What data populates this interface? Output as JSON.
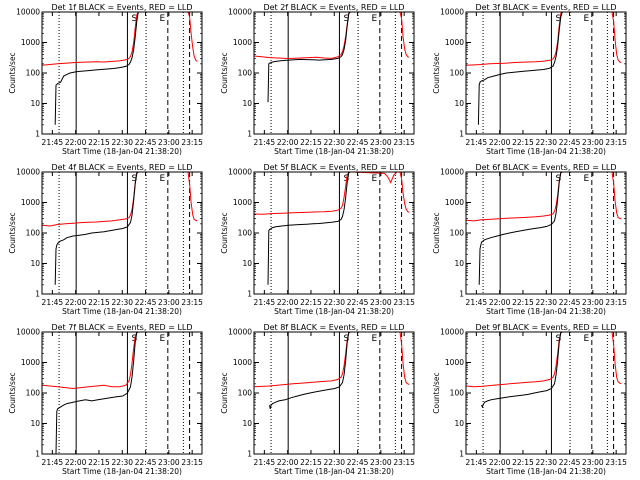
{
  "chart_data": {
    "type": "line",
    "layout": "3x3 grid",
    "xlabel": "Start Time (18-Jan-04 21:38:20)",
    "ylabel": "Counts/sec",
    "y_scale": "log",
    "ylim": [
      1,
      10000
    ],
    "y_tick_labels": [
      "1",
      "10",
      "100",
      "1000",
      "10000"
    ],
    "x_range_minutes": [
      0,
      103
    ],
    "x_tick_minutes": [
      6.67,
      21.67,
      36.67,
      51.67,
      66.67,
      81.67,
      96.67
    ],
    "x_tick_labels": [
      "21:45",
      "22:00",
      "22:15",
      "22:30",
      "22:45",
      "23:00",
      "23:15"
    ],
    "series_colors": {
      "events": "#000000",
      "lld": "#ff0000"
    },
    "grid": false,
    "panels": [
      {
        "title": "Det 1f BLACK = Events, RED = LLD",
        "markers": [
          "S",
          "E"
        ],
        "events": {
          "x": [
            8.5,
            9,
            9.5,
            10,
            12,
            14,
            16,
            18,
            22,
            26,
            30,
            34,
            38,
            42,
            46,
            50,
            54,
            56,
            57,
            58,
            59,
            60,
            61,
            62,
            63
          ],
          "y": [
            2,
            40,
            42,
            45,
            50,
            80,
            90,
            100,
            110,
            115,
            120,
            125,
            130,
            135,
            140,
            150,
            165,
            190,
            230,
            320,
            600,
            1500,
            5000,
            10000,
            10000
          ]
        },
        "lld": {
          "x": [
            0,
            5,
            10,
            15,
            20,
            25,
            30,
            35,
            40,
            45,
            50,
            54,
            56,
            57,
            58,
            59,
            60,
            61,
            62,
            63,
            94,
            95,
            96,
            97,
            98,
            99,
            100
          ],
          "y": [
            180,
            190,
            200,
            210,
            220,
            225,
            230,
            235,
            230,
            240,
            250,
            270,
            300,
            350,
            500,
            1000,
            3000,
            8000,
            10000,
            10000,
            10000,
            7000,
            2000,
            700,
            350,
            260,
            240
          ]
        }
      },
      {
        "title": "Det 2f BLACK = Events, RED = LLD",
        "markers": [
          "S",
          "E"
        ],
        "events": {
          "x": [
            9,
            9.5,
            10,
            12,
            14,
            18,
            22,
            26,
            30,
            34,
            38,
            42,
            46,
            50,
            54,
            56,
            57,
            58,
            59,
            60,
            61,
            62,
            63
          ],
          "y": [
            11,
            200,
            210,
            230,
            240,
            255,
            265,
            270,
            280,
            275,
            270,
            265,
            270,
            280,
            300,
            340,
            400,
            600,
            1200,
            3500,
            9000,
            10000,
            10000
          ]
        },
        "lld": {
          "x": [
            0,
            5,
            10,
            15,
            20,
            25,
            30,
            35,
            40,
            45,
            50,
            54,
            56,
            57,
            58,
            59,
            60,
            61,
            62,
            63,
            94,
            95,
            96,
            97,
            98,
            99,
            100
          ],
          "y": [
            360,
            340,
            320,
            310,
            300,
            300,
            310,
            320,
            330,
            310,
            300,
            340,
            400,
            500,
            800,
            1600,
            4000,
            9000,
            10000,
            10000,
            10000,
            6000,
            1500,
            600,
            400,
            340,
            330
          ]
        }
      },
      {
        "title": "Det 3f BLACK = Events, RED = LLD",
        "markers": [
          "S",
          "E"
        ],
        "events": {
          "x": [
            8,
            8.5,
            9,
            10,
            12,
            14,
            18,
            22,
            26,
            30,
            34,
            38,
            42,
            46,
            50,
            54,
            56,
            57,
            58,
            59,
            60,
            61,
            62,
            63
          ],
          "y": [
            2,
            40,
            50,
            55,
            60,
            70,
            80,
            90,
            100,
            105,
            110,
            115,
            120,
            125,
            130,
            145,
            170,
            220,
            350,
            800,
            2500,
            7000,
            10000,
            10000
          ]
        },
        "lld": {
          "x": [
            0,
            5,
            10,
            15,
            20,
            25,
            30,
            35,
            40,
            45,
            50,
            54,
            56,
            57,
            58,
            59,
            60,
            61,
            62,
            63,
            94,
            95,
            96,
            97,
            98,
            99,
            100
          ],
          "y": [
            180,
            185,
            190,
            200,
            205,
            210,
            220,
            225,
            230,
            235,
            245,
            260,
            290,
            340,
            500,
            1100,
            3500,
            9000,
            10000,
            10000,
            10000,
            5000,
            1200,
            400,
            260,
            230,
            220
          ]
        }
      },
      {
        "title": "Det 4f BLACK = Events, RED = LLD",
        "markers": [
          "S",
          "E"
        ],
        "events": {
          "x": [
            8.5,
            9,
            9.5,
            10,
            12,
            14,
            16,
            20,
            24,
            28,
            32,
            36,
            40,
            44,
            48,
            52,
            55,
            57,
            58,
            59,
            60,
            61,
            62,
            63
          ],
          "y": [
            2,
            30,
            40,
            45,
            55,
            60,
            70,
            80,
            85,
            90,
            100,
            105,
            110,
            120,
            130,
            140,
            160,
            220,
            400,
            1200,
            4000,
            9000,
            10000,
            10000
          ]
        },
        "lld": {
          "x": [
            0,
            5,
            10,
            15,
            20,
            25,
            30,
            35,
            40,
            45,
            50,
            54,
            56,
            57,
            58,
            59,
            60,
            61,
            62,
            63,
            94,
            95,
            96,
            97,
            98,
            99,
            100
          ],
          "y": [
            180,
            170,
            190,
            200,
            210,
            220,
            225,
            230,
            240,
            250,
            270,
            290,
            320,
            380,
            600,
            1400,
            4500,
            9500,
            10000,
            10000,
            10000,
            4000,
            1000,
            400,
            280,
            260,
            250
          ]
        }
      },
      {
        "title": "Det 5f BLACK = Events, RED = LLD",
        "markers": [
          "S",
          "E"
        ],
        "events": {
          "x": [
            9,
            9.5,
            10,
            12,
            14,
            18,
            22,
            26,
            30,
            34,
            38,
            42,
            46,
            50,
            54,
            56,
            57,
            58,
            59,
            60,
            61,
            62,
            63
          ],
          "y": [
            2,
            120,
            130,
            150,
            160,
            170,
            180,
            185,
            190,
            195,
            200,
            205,
            215,
            225,
            240,
            280,
            350,
            600,
            1500,
            4500,
            9500,
            10000,
            10000
          ]
        },
        "lld": {
          "x": [
            0,
            5,
            10,
            15,
            20,
            25,
            30,
            35,
            40,
            45,
            50,
            54,
            56,
            57,
            58,
            59,
            60,
            61,
            62,
            63,
            84,
            86,
            88,
            90,
            92,
            94,
            95,
            96,
            97,
            98,
            99,
            100
          ],
          "y": [
            420,
            410,
            430,
            440,
            450,
            460,
            470,
            480,
            490,
            500,
            520,
            560,
            650,
            800,
            1500,
            3500,
            8000,
            10000,
            10000,
            10000,
            9000,
            7000,
            4500,
            8000,
            10000,
            10000,
            6000,
            2000,
            900,
            600,
            500,
            480
          ]
        }
      },
      {
        "title": "Det 6f BLACK = Events, RED = LLD",
        "markers": [
          "S",
          "E"
        ],
        "events": {
          "x": [
            8.5,
            9,
            9.5,
            10,
            12,
            14,
            16,
            20,
            24,
            28,
            32,
            36,
            40,
            44,
            48,
            52,
            55,
            57,
            58,
            59,
            60,
            61,
            62,
            63
          ],
          "y": [
            2,
            30,
            40,
            50,
            60,
            65,
            70,
            80,
            90,
            100,
            110,
            120,
            130,
            140,
            150,
            165,
            190,
            250,
            450,
            1300,
            4500,
            9500,
            10000,
            10000
          ]
        },
        "lld": {
          "x": [
            0,
            5,
            10,
            15,
            20,
            25,
            30,
            35,
            40,
            45,
            50,
            54,
            56,
            57,
            58,
            59,
            60,
            61,
            62,
            63,
            94,
            95,
            96,
            97,
            98,
            99,
            100
          ],
          "y": [
            260,
            250,
            270,
            280,
            290,
            300,
            310,
            320,
            330,
            340,
            360,
            390,
            430,
            500,
            800,
            1800,
            5000,
            9500,
            10000,
            10000,
            10000,
            4500,
            1100,
            450,
            320,
            300,
            290
          ]
        }
      },
      {
        "title": "Det 7f BLACK = Events, RED = LLD",
        "markers": [
          "S",
          "E"
        ],
        "events": {
          "x": [
            9,
            9.5,
            10,
            12,
            14,
            16,
            20,
            24,
            28,
            32,
            36,
            40,
            44,
            48,
            52,
            55,
            57,
            58,
            59,
            60,
            61,
            62,
            63
          ],
          "y": [
            1,
            25,
            30,
            35,
            40,
            45,
            50,
            55,
            60,
            55,
            60,
            65,
            70,
            75,
            80,
            100,
            160,
            350,
            1200,
            4500,
            9500,
            10000,
            10000
          ]
        },
        "lld": {
          "x": [
            0,
            5,
            10,
            15,
            20,
            25,
            30,
            35,
            40,
            45,
            50,
            54,
            56,
            57,
            58,
            59,
            60,
            61,
            62,
            63
          ],
          "y": [
            180,
            170,
            160,
            150,
            140,
            150,
            160,
            170,
            180,
            160,
            160,
            180,
            250,
            400,
            1000,
            3000,
            7000,
            10000,
            10000,
            10000
          ]
        }
      },
      {
        "title": "Det 8f BLACK = Events, RED = LLD",
        "markers": [
          "S",
          "E"
        ],
        "events": {
          "x": [
            10,
            10.5,
            11,
            12,
            14,
            16,
            20,
            24,
            28,
            32,
            36,
            40,
            44,
            48,
            52,
            55,
            57,
            58,
            59,
            60,
            61,
            62,
            63
          ],
          "y": [
            40,
            30,
            40,
            45,
            50,
            55,
            60,
            70,
            80,
            90,
            100,
            110,
            120,
            130,
            140,
            160,
            220,
            400,
            1200,
            4500,
            9500,
            10000,
            10000
          ]
        },
        "lld": {
          "x": [
            0,
            5,
            10,
            15,
            20,
            25,
            30,
            35,
            40,
            45,
            50,
            54,
            56,
            57,
            58,
            59,
            60,
            61,
            62,
            63,
            94,
            95,
            96,
            97,
            98,
            99,
            100
          ],
          "y": [
            160,
            165,
            170,
            180,
            190,
            200,
            210,
            220,
            230,
            240,
            250,
            280,
            330,
            420,
            800,
            2000,
            5500,
            9800,
            10000,
            10000,
            10000,
            4000,
            900,
            320,
            220,
            200,
            190
          ]
        }
      },
      {
        "title": "Det 9f BLACK = Events, RED = LLD",
        "markers": [
          "S",
          "E"
        ],
        "events": {
          "x": [
            10,
            10.5,
            11,
            12,
            14,
            16,
            20,
            24,
            28,
            32,
            36,
            40,
            44,
            48,
            52,
            55,
            57,
            58,
            59,
            60,
            61,
            62,
            63
          ],
          "y": [
            40,
            35,
            40,
            50,
            55,
            60,
            65,
            70,
            75,
            80,
            85,
            90,
            100,
            110,
            120,
            140,
            200,
            400,
            1200,
            4500,
            9500,
            10000,
            10000
          ]
        },
        "lld": {
          "x": [
            0,
            5,
            10,
            15,
            20,
            25,
            30,
            35,
            40,
            45,
            50,
            54,
            56,
            57,
            58,
            59,
            60,
            61,
            62,
            63,
            94,
            95,
            96,
            97,
            98,
            99,
            100
          ],
          "y": [
            170,
            160,
            165,
            175,
            185,
            195,
            205,
            215,
            225,
            235,
            250,
            280,
            330,
            420,
            800,
            2000,
            5500,
            9800,
            10000,
            10000,
            10000,
            4000,
            900,
            320,
            230,
            210,
            200
          ]
        }
      }
    ]
  }
}
